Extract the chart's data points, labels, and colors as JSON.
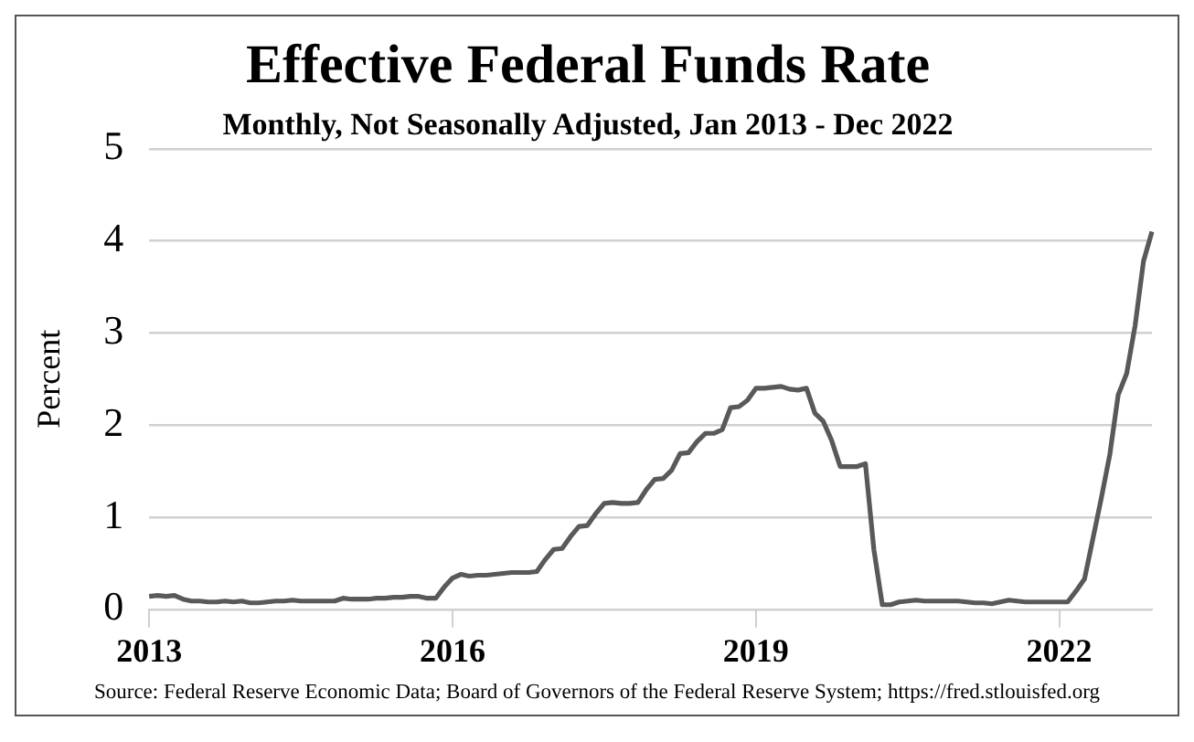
{
  "chart_data": {
    "type": "line",
    "title": "Effective Federal Funds Rate",
    "subtitle": "Monthly, Not Seasonally Adjusted, Jan 2013 - Dec 2022",
    "ylabel": "Percent",
    "categories": [
      "2013",
      null,
      null,
      null,
      null,
      null,
      null,
      null,
      null,
      null,
      null,
      null,
      null,
      null,
      null,
      null,
      null,
      null,
      null,
      null,
      null,
      null,
      null,
      null,
      null,
      null,
      null,
      null,
      null,
      null,
      null,
      null,
      null,
      null,
      null,
      null,
      "2016",
      null,
      null,
      null,
      null,
      null,
      null,
      null,
      null,
      null,
      null,
      null,
      null,
      null,
      null,
      null,
      null,
      null,
      null,
      null,
      null,
      null,
      null,
      null,
      null,
      null,
      null,
      null,
      null,
      null,
      null,
      null,
      null,
      null,
      null,
      null,
      "2019",
      null,
      null,
      null,
      null,
      null,
      null,
      null,
      null,
      null,
      null,
      null,
      null,
      null,
      null,
      null,
      null,
      null,
      null,
      null,
      null,
      null,
      null,
      null,
      null,
      null,
      null,
      null,
      null,
      null,
      null,
      null,
      null,
      null,
      null,
      null,
      "2022",
      null,
      null,
      null,
      null,
      null,
      null,
      null,
      null,
      null,
      null,
      null
    ],
    "series": [
      {
        "color": "#595959",
        "values": [
          0.14,
          0.15,
          0.14,
          0.15,
          0.11,
          0.09,
          0.09,
          0.08,
          0.08,
          0.09,
          0.08,
          0.09,
          0.07,
          0.07,
          0.08,
          0.09,
          0.09,
          0.1,
          0.09,
          0.09,
          0.09,
          0.09,
          0.09,
          0.12,
          0.11,
          0.11,
          0.11,
          0.12,
          0.12,
          0.13,
          0.13,
          0.14,
          0.14,
          0.12,
          0.12,
          0.24,
          0.34,
          0.38,
          0.36,
          0.37,
          0.37,
          0.38,
          0.39,
          0.4,
          0.4,
          0.4,
          0.41,
          0.54,
          0.65,
          0.66,
          0.79,
          0.9,
          0.91,
          1.04,
          1.15,
          1.16,
          1.15,
          1.15,
          1.16,
          1.3,
          1.41,
          1.42,
          1.51,
          1.69,
          1.7,
          1.82,
          1.91,
          1.91,
          1.95,
          2.19,
          2.2,
          2.27,
          2.4,
          2.4,
          2.41,
          2.42,
          2.39,
          2.38,
          2.4,
          2.13,
          2.04,
          1.83,
          1.55,
          1.55,
          1.55,
          1.58,
          0.65,
          0.05,
          0.05,
          0.08,
          0.09,
          0.1,
          0.09,
          0.09,
          0.09,
          0.09,
          0.09,
          0.08,
          0.07,
          0.07,
          0.06,
          0.08,
          0.1,
          0.09,
          0.08,
          0.08,
          0.08,
          0.08,
          0.08,
          0.08,
          0.2,
          0.33,
          0.77,
          1.21,
          1.68,
          2.33,
          2.56,
          3.08,
          3.78,
          4.1
        ]
      }
    ],
    "ylim": [
      0,
      5
    ],
    "yticks": [
      0,
      1,
      2,
      3,
      4,
      5
    ],
    "grid": "y",
    "legend": false,
    "marker": "none",
    "line_style": "solid",
    "annotations": [
      "Source: Federal Reserve Economic Data; Board of Governors of the Federal Reserve System; https://fred.stlouisfed.org"
    ]
  }
}
